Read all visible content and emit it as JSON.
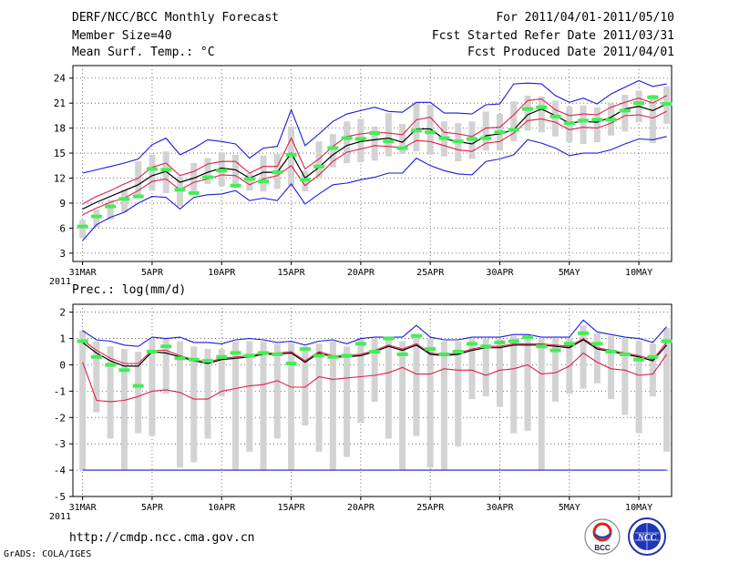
{
  "header": {
    "left": [
      "DERF/NCC/BCC Monthly Forecast",
      "Member Size=40",
      "Mean Surf. Temp.: °C"
    ],
    "right": [
      "For 2011/04/01-2011/05/10",
      "Fcst Started Refer Date 2011/03/31",
      "Fcst Produced Date 2011/04/01"
    ]
  },
  "footer": {
    "url": "http://cmdp.ncc.cma.gov.cn",
    "credit": "GrADS: COLA/IGES"
  },
  "logos": {
    "bcc": "BCC",
    "ncc": "NCC"
  },
  "colors": {
    "box": "#d3d3d3",
    "mean": "#000000",
    "inner": "#e0204a",
    "outer": "#1a1adc",
    "obs": "#44ee55",
    "grid": "#555555"
  },
  "chart_data": [
    {
      "type": "box",
      "title": "Mean Surf. Temp.: °C",
      "x_day_index_start": 0,
      "x_ticks": [
        {
          "i": 0,
          "label": "31MAR"
        },
        {
          "i": 5,
          "label": "5APR"
        },
        {
          "i": 10,
          "label": "10APR"
        },
        {
          "i": 15,
          "label": "15APR"
        },
        {
          "i": 20,
          "label": "20APR"
        },
        {
          "i": 25,
          "label": "25APR"
        },
        {
          "i": 30,
          "label": "30APR"
        },
        {
          "i": 35,
          "label": "5MAY"
        },
        {
          "i": 40,
          "label": "10MAY"
        }
      ],
      "x_year_label": "2011",
      "ylim": [
        2,
        25.5
      ],
      "y_ticks": [
        3,
        6,
        9,
        12,
        15,
        18,
        21,
        24
      ],
      "series": {
        "mean": [
          8.3,
          9.1,
          9.8,
          10.5,
          11.2,
          12.3,
          12.8,
          11.5,
          12.0,
          12.7,
          13.2,
          13.0,
          12.0,
          12.7,
          12.7,
          15.0,
          12.0,
          13.3,
          14.8,
          15.9,
          16.4,
          16.6,
          16.8,
          16.3,
          17.9,
          17.9,
          16.7,
          16.4,
          16.1,
          17.1,
          17.3,
          17.8,
          19.6,
          20.3,
          19.5,
          18.6,
          18.8,
          18.7,
          19.3,
          20.3,
          20.6,
          20.1,
          20.9
        ],
        "inner_upper": [
          8.9,
          9.8,
          10.5,
          11.3,
          12.0,
          13.3,
          13.8,
          12.3,
          12.8,
          13.7,
          14.0,
          14.0,
          12.6,
          13.4,
          13.4,
          16.8,
          13.1,
          14.3,
          15.8,
          17.0,
          17.3,
          17.5,
          17.4,
          17.2,
          19.0,
          19.3,
          17.5,
          17.3,
          17.0,
          18.0,
          18.1,
          19.6,
          21.3,
          21.5,
          20.2,
          19.5,
          19.7,
          19.6,
          20.5,
          21.1,
          21.6,
          21.0,
          21.9
        ],
        "inner_lower": [
          7.6,
          8.4,
          9.1,
          9.6,
          10.5,
          11.6,
          11.9,
          10.6,
          11.5,
          11.9,
          12.4,
          12.3,
          11.2,
          11.9,
          12.3,
          13.5,
          11.1,
          12.4,
          14.0,
          15.1,
          15.5,
          15.9,
          15.8,
          15.6,
          16.5,
          16.4,
          15.9,
          15.4,
          15.2,
          16.2,
          16.4,
          17.4,
          18.9,
          19.1,
          18.7,
          17.8,
          18.1,
          18.0,
          18.6,
          19.5,
          19.6,
          19.2,
          20.0
        ],
        "outer_upper": [
          12.6,
          13.0,
          13.4,
          13.8,
          14.3,
          16.0,
          16.8,
          14.8,
          15.6,
          16.6,
          16.4,
          16.1,
          14.4,
          15.6,
          15.8,
          20.2,
          15.9,
          17.3,
          18.8,
          19.7,
          20.1,
          20.5,
          20.0,
          19.9,
          21.1,
          21.1,
          19.8,
          19.8,
          19.7,
          20.8,
          20.9,
          23.3,
          23.4,
          23.3,
          21.9,
          21.1,
          21.6,
          20.9,
          22.1,
          22.9,
          23.7,
          23.0,
          23.3
        ],
        "outer_lower": [
          4.5,
          6.4,
          7.3,
          7.9,
          9.0,
          9.8,
          9.7,
          8.3,
          9.7,
          10.0,
          10.1,
          10.5,
          9.3,
          9.6,
          9.3,
          11.3,
          8.9,
          10.1,
          11.2,
          11.4,
          11.8,
          12.1,
          12.6,
          12.6,
          14.4,
          13.5,
          12.9,
          12.5,
          12.4,
          14.0,
          14.3,
          14.8,
          16.6,
          16.2,
          15.6,
          14.7,
          15.0,
          15.0,
          15.4,
          16.1,
          16.7,
          16.6,
          17.0
        ],
        "box_top": [
          7.0,
          8.2,
          9.4,
          10.6,
          14.0,
          14.8,
          15.2,
          12.2,
          13.8,
          14.4,
          15.1,
          14.8,
          12.6,
          14.7,
          14.9,
          18.2,
          12.9,
          16.4,
          17.3,
          18.8,
          19.1,
          18.2,
          19.8,
          18.5,
          21.1,
          20.8,
          18.8,
          18.6,
          18.8,
          20.0,
          19.7,
          21.2,
          21.9,
          21.8,
          21.3,
          20.6,
          20.7,
          20.5,
          21.0,
          22.0,
          22.5,
          22.0,
          23.0
        ],
        "box_bottom": [
          4.8,
          6.1,
          7.0,
          7.9,
          9.9,
          10.5,
          10.2,
          8.6,
          10.1,
          11.3,
          11.0,
          10.8,
          10.5,
          10.4,
          10.7,
          11.1,
          10.4,
          12.1,
          13.3,
          13.8,
          13.9,
          14.1,
          14.6,
          14.9,
          15.2,
          14.8,
          14.6,
          14.0,
          14.3,
          15.3,
          15.3,
          16.4,
          17.7,
          17.5,
          17.0,
          16.3,
          16.1,
          16.3,
          17.1,
          17.6,
          18.7,
          16.2,
          18.5
        ],
        "obs": [
          6.2,
          7.4,
          8.6,
          9.5,
          9.8,
          13.1,
          13.0,
          10.6,
          10.2,
          12.1,
          12.9,
          11.1,
          11.9,
          11.6,
          12.7,
          14.8,
          11.8,
          13.4,
          15.6,
          16.8,
          16.7,
          17.4,
          16.4,
          15.6,
          17.7,
          17.5,
          16.8,
          16.4,
          16.7,
          16.8,
          17.5,
          17.8,
          20.3,
          20.5,
          19.4,
          18.6,
          18.9,
          19.0,
          19.0,
          20.1,
          21.0,
          21.7,
          20.9
        ]
      }
    },
    {
      "type": "box",
      "title": "Prec.: log(mm/d)",
      "x_day_index_start": 0,
      "x_ticks": [
        {
          "i": 0,
          "label": "31MAR"
        },
        {
          "i": 5,
          "label": "5APR"
        },
        {
          "i": 10,
          "label": "10APR"
        },
        {
          "i": 15,
          "label": "15APR"
        },
        {
          "i": 20,
          "label": "20APR"
        },
        {
          "i": 25,
          "label": "25APR"
        },
        {
          "i": 30,
          "label": "30APR"
        },
        {
          "i": 35,
          "label": "5MAY"
        },
        {
          "i": 40,
          "label": "10MAY"
        }
      ],
      "x_year_label": "2011",
      "ylim": [
        -5,
        2.3
      ],
      "y_ticks": [
        -5,
        -4,
        -3,
        -2,
        -1,
        0,
        1,
        2
      ],
      "series": {
        "mean": [
          0.85,
          0.45,
          0.15,
          -0.05,
          -0.05,
          0.5,
          0.45,
          0.3,
          0.15,
          0.05,
          0.2,
          0.25,
          0.3,
          0.4,
          0.4,
          0.45,
          0.1,
          0.45,
          0.3,
          0.3,
          0.35,
          0.5,
          0.7,
          0.55,
          0.75,
          0.4,
          0.35,
          0.4,
          0.55,
          0.65,
          0.65,
          0.75,
          0.75,
          0.75,
          0.7,
          0.65,
          0.95,
          0.6,
          0.5,
          0.4,
          0.3,
          0.15,
          0.75
        ],
        "inner_upper": [
          0.95,
          0.55,
          0.25,
          0.05,
          0.05,
          0.55,
          0.55,
          0.35,
          0.2,
          0.1,
          0.25,
          0.3,
          0.35,
          0.45,
          0.45,
          0.5,
          0.15,
          0.5,
          0.35,
          0.35,
          0.4,
          0.55,
          0.75,
          0.6,
          0.8,
          0.45,
          0.4,
          0.45,
          0.6,
          0.7,
          0.7,
          0.8,
          0.8,
          0.8,
          0.75,
          0.7,
          1.0,
          0.65,
          0.55,
          0.45,
          0.35,
          0.2,
          0.85
        ],
        "inner_lower": [
          0.1,
          -1.35,
          -1.4,
          -1.35,
          -1.2,
          -1.0,
          -0.95,
          -1.05,
          -1.3,
          -1.3,
          -1.0,
          -0.9,
          -0.8,
          -0.75,
          -0.6,
          -0.85,
          -0.85,
          -0.45,
          -0.55,
          -0.5,
          -0.45,
          -0.4,
          -0.3,
          -0.1,
          -0.35,
          -0.35,
          -0.15,
          -0.2,
          -0.2,
          -0.4,
          -0.2,
          -0.15,
          0.0,
          -0.35,
          -0.3,
          -0.05,
          0.45,
          0.1,
          -0.15,
          -0.2,
          -0.4,
          -0.35,
          0.4
        ],
        "outer_upper": [
          1.3,
          0.95,
          0.9,
          0.75,
          0.7,
          1.05,
          1.0,
          1.05,
          0.85,
          0.85,
          0.8,
          0.95,
          1.0,
          0.95,
          0.85,
          0.9,
          0.75,
          0.9,
          0.95,
          0.8,
          1.0,
          1.05,
          1.05,
          1.05,
          1.5,
          1.05,
          0.95,
          0.95,
          1.05,
          1.05,
          1.05,
          1.15,
          1.15,
          1.05,
          1.05,
          1.05,
          1.7,
          1.25,
          1.15,
          1.05,
          1.0,
          0.85,
          1.45
        ],
        "outer_lower": [
          -4.0,
          -4.0,
          -4.0,
          -4.0,
          -4.0,
          -4.0,
          -4.0,
          -4.0,
          -4.0,
          -4.0,
          -4.0,
          -4.0,
          -4.0,
          -4.0,
          -4.0,
          -4.0,
          -4.0,
          -4.0,
          -4.0,
          -4.0,
          -4.0,
          -4.0,
          -4.0,
          -4.0,
          -4.0,
          -4.0,
          -4.0,
          -4.0,
          -4.0,
          -4.0,
          -4.0,
          -4.0,
          -4.0,
          -4.0,
          -4.0,
          -4.0,
          -4.0,
          -4.0,
          -4.0,
          -4.0,
          -4.0,
          -4.0,
          -4.0
        ],
        "box_top": [
          1.3,
          0.9,
          0.7,
          0.6,
          0.5,
          1.0,
          1.0,
          0.9,
          0.7,
          0.6,
          0.6,
          0.9,
          0.9,
          0.9,
          0.8,
          0.9,
          0.7,
          0.8,
          0.9,
          0.7,
          1.0,
          1.0,
          1.0,
          0.9,
          1.1,
          1.0,
          0.9,
          0.9,
          1.0,
          1.0,
          1.0,
          1.1,
          1.1,
          1.0,
          1.0,
          1.0,
          1.5,
          1.2,
          1.1,
          1.0,
          0.9,
          0.8,
          1.4
        ],
        "box_bottom": [
          -4.0,
          -1.8,
          -2.8,
          -4.0,
          -2.6,
          -2.7,
          -1.1,
          -3.9,
          -3.7,
          -2.8,
          -1.2,
          -4.0,
          -3.3,
          -4.0,
          -2.8,
          -4.0,
          -2.3,
          -3.3,
          -4.0,
          -3.5,
          -2.2,
          -1.4,
          -2.8,
          -4.0,
          -2.7,
          -3.9,
          -4.0,
          -3.1,
          -1.3,
          -1.2,
          -1.6,
          -2.6,
          -2.5,
          -4.0,
          -1.4,
          -1.1,
          -0.9,
          -0.7,
          -1.3,
          -1.9,
          -2.6,
          -1.2,
          -3.3
        ],
        "obs": [
          0.9,
          0.3,
          0.0,
          -0.2,
          -0.8,
          0.5,
          0.7,
          0.25,
          0.2,
          0.15,
          0.3,
          0.45,
          0.35,
          0.45,
          0.4,
          0.05,
          0.6,
          0.35,
          0.3,
          0.35,
          0.8,
          0.5,
          1.0,
          0.4,
          1.1,
          0.6,
          0.4,
          0.5,
          0.8,
          0.7,
          0.85,
          0.9,
          1.05,
          0.7,
          0.55,
          0.8,
          1.2,
          0.8,
          0.5,
          0.4,
          0.2,
          0.3,
          0.9
        ]
      }
    }
  ]
}
